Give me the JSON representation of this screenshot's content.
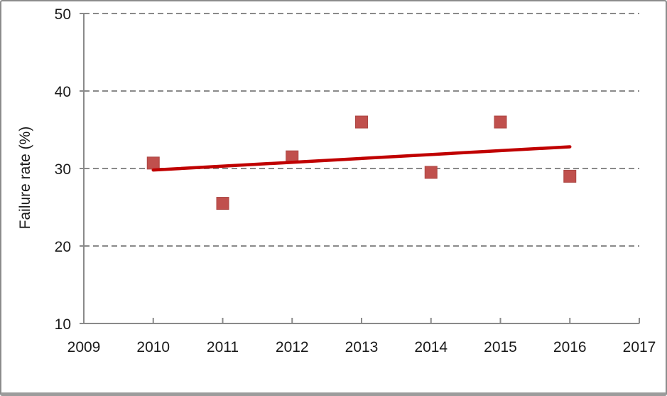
{
  "window": {
    "background": "#FFFFFF"
  },
  "colors": {
    "marker": "#C0504D",
    "marker_edge": "#AC4744",
    "trend_line": "#C00000",
    "gridline": "#8A8A8A",
    "axis": "#8A8A8A",
    "tick_text": "#1A1A1A",
    "frame_border": "#8C8C8C",
    "frame_border_bottom": "#9C9C9C"
  },
  "chart_data": {
    "type": "scatter",
    "title": "",
    "xlabel": "",
    "ylabel": "Failure rate (%)",
    "xlim": [
      2009,
      2017
    ],
    "ylim": [
      10,
      50
    ],
    "x_ticks": [
      2009,
      2010,
      2011,
      2012,
      2013,
      2014,
      2015,
      2016,
      2017
    ],
    "y_ticks": [
      10,
      20,
      30,
      40,
      50
    ],
    "grid": {
      "horizontal": true,
      "vertical": false,
      "style": "dashed"
    },
    "legend": "none",
    "series": [
      {
        "name": "failure-rate-points",
        "type": "scatter",
        "marker": "square",
        "marker_size": 17,
        "color": "#C0504D",
        "edge_color": "#AC4744",
        "x": [
          2010,
          2011,
          2012,
          2013,
          2014,
          2015,
          2016
        ],
        "y": [
          30.7,
          25.5,
          31.5,
          36.0,
          29.5,
          36.0,
          29.0
        ]
      },
      {
        "name": "linear-trend",
        "type": "line",
        "color": "#C00000",
        "width": 4.5,
        "x": [
          2010,
          2016
        ],
        "y": [
          29.8,
          32.8
        ]
      }
    ]
  }
}
